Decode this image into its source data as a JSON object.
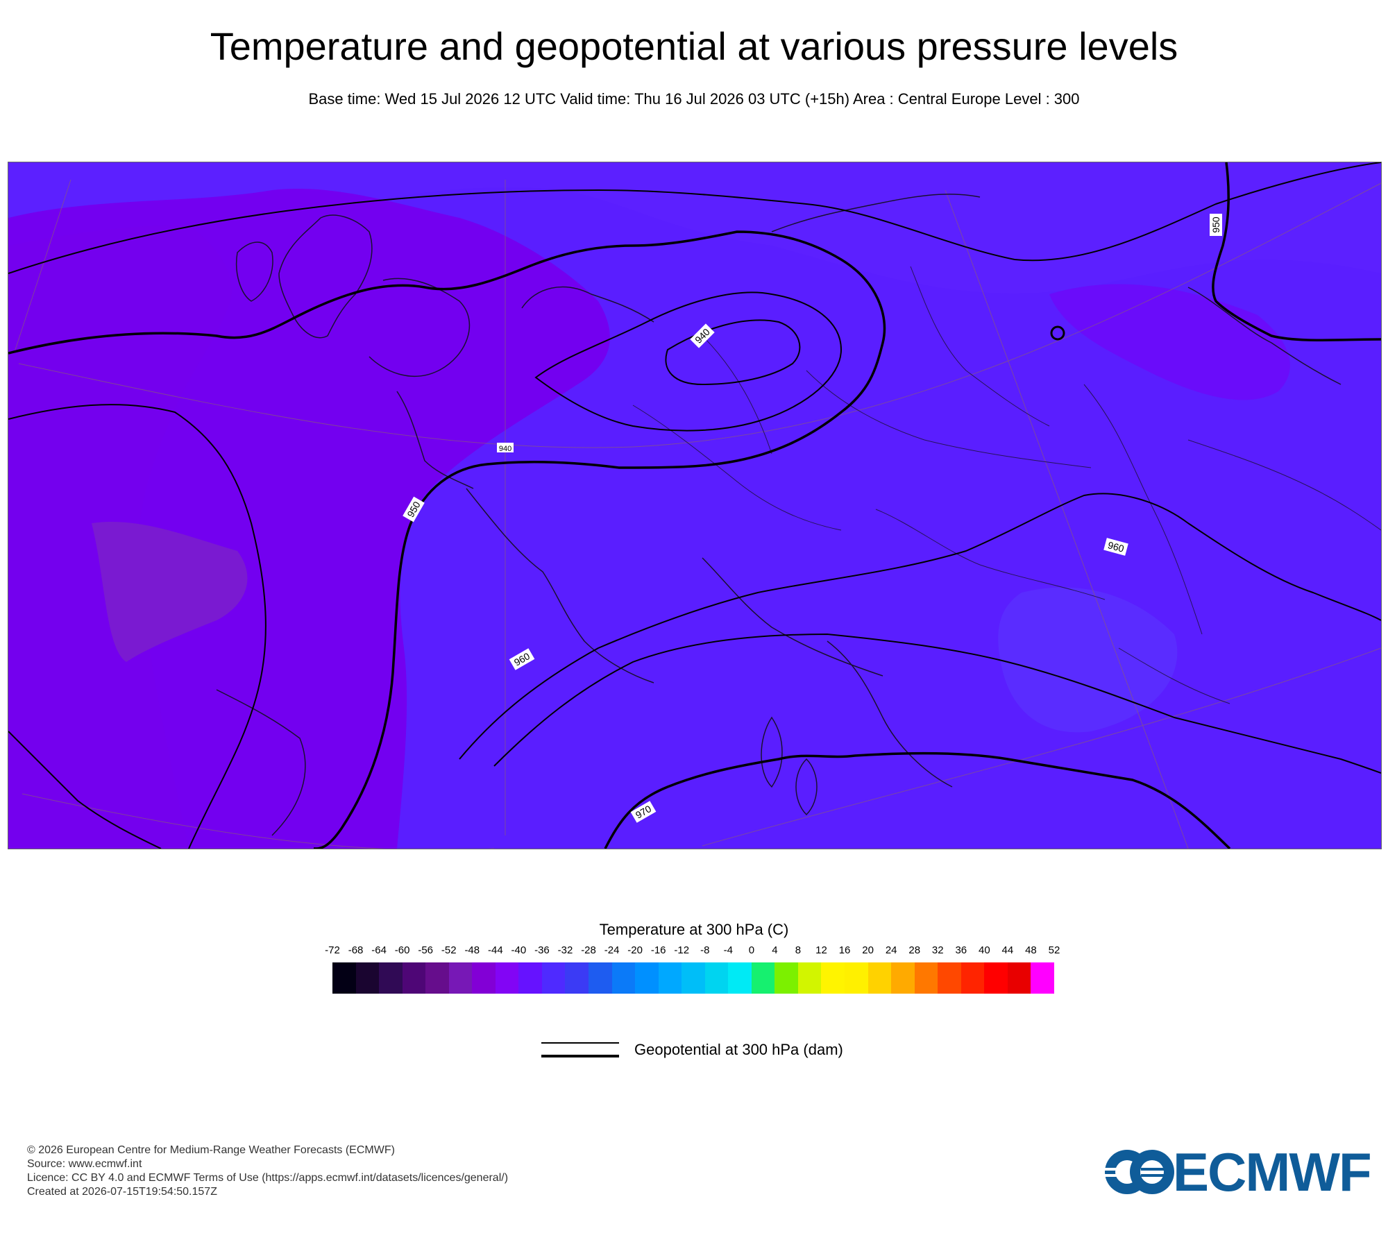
{
  "header": {
    "title": "Temperature and geopotential at various pressure levels",
    "subtitle": "Base time: Wed 15 Jul 2026 12 UTC Valid time: Thu 16 Jul 2026 03 UTC (+15h) Area : Central Europe Level : 300"
  },
  "map": {
    "contour_labels": [
      "950",
      "940",
      "940",
      "950",
      "960",
      "960",
      "970"
    ],
    "temperature_field_colors": {
      "cold": "#6600e0",
      "colder": "#7400ee",
      "mid": "#5c1bff",
      "warmer": "#5a22ff",
      "coldest_patch": "#7a1ad1"
    }
  },
  "legend": {
    "colorbar_title": "Temperature at 300 hPa (C)",
    "ticks": [
      "-72",
      "-68",
      "-64",
      "-60",
      "-56",
      "-52",
      "-48",
      "-44",
      "-40",
      "-36",
      "-32",
      "-28",
      "-24",
      "-20",
      "-16",
      "-12",
      "-8",
      "-4",
      "0",
      "4",
      "8",
      "12",
      "16",
      "20",
      "24",
      "28",
      "32",
      "36",
      "40",
      "44",
      "48",
      "52"
    ],
    "colors": [
      "#030015",
      "#1a0530",
      "#300a55",
      "#4e0676",
      "#660d8c",
      "#7718b6",
      "#8200d6",
      "#8205f5",
      "#6612ff",
      "#4f2aff",
      "#3b3bf5",
      "#1e5cf0",
      "#0b7af8",
      "#0090ff",
      "#00a8ff",
      "#00bef8",
      "#00d4f0",
      "#00eaf5",
      "#16f06f",
      "#7cf000",
      "#d2f500",
      "#fff400",
      "#fff000",
      "#ffd200",
      "#ffaa00",
      "#ff7800",
      "#ff4800",
      "#ff2400",
      "#ff0000",
      "#e80000",
      "#ff00ff"
    ],
    "line_label": "Geopotential at 300 hPa (dam)"
  },
  "footer": {
    "lines": [
      "© 2026 European Centre for Medium-Range Weather Forecasts (ECMWF)",
      "Source: www.ecmwf.int",
      "Licence: CC BY 4.0 and ECMWF Terms of Use (https://apps.ecmwf.int/datasets/licences/general/)",
      "Created at 2026-07-15T19:54:50.157Z"
    ],
    "logo_text": "ECMWF"
  }
}
